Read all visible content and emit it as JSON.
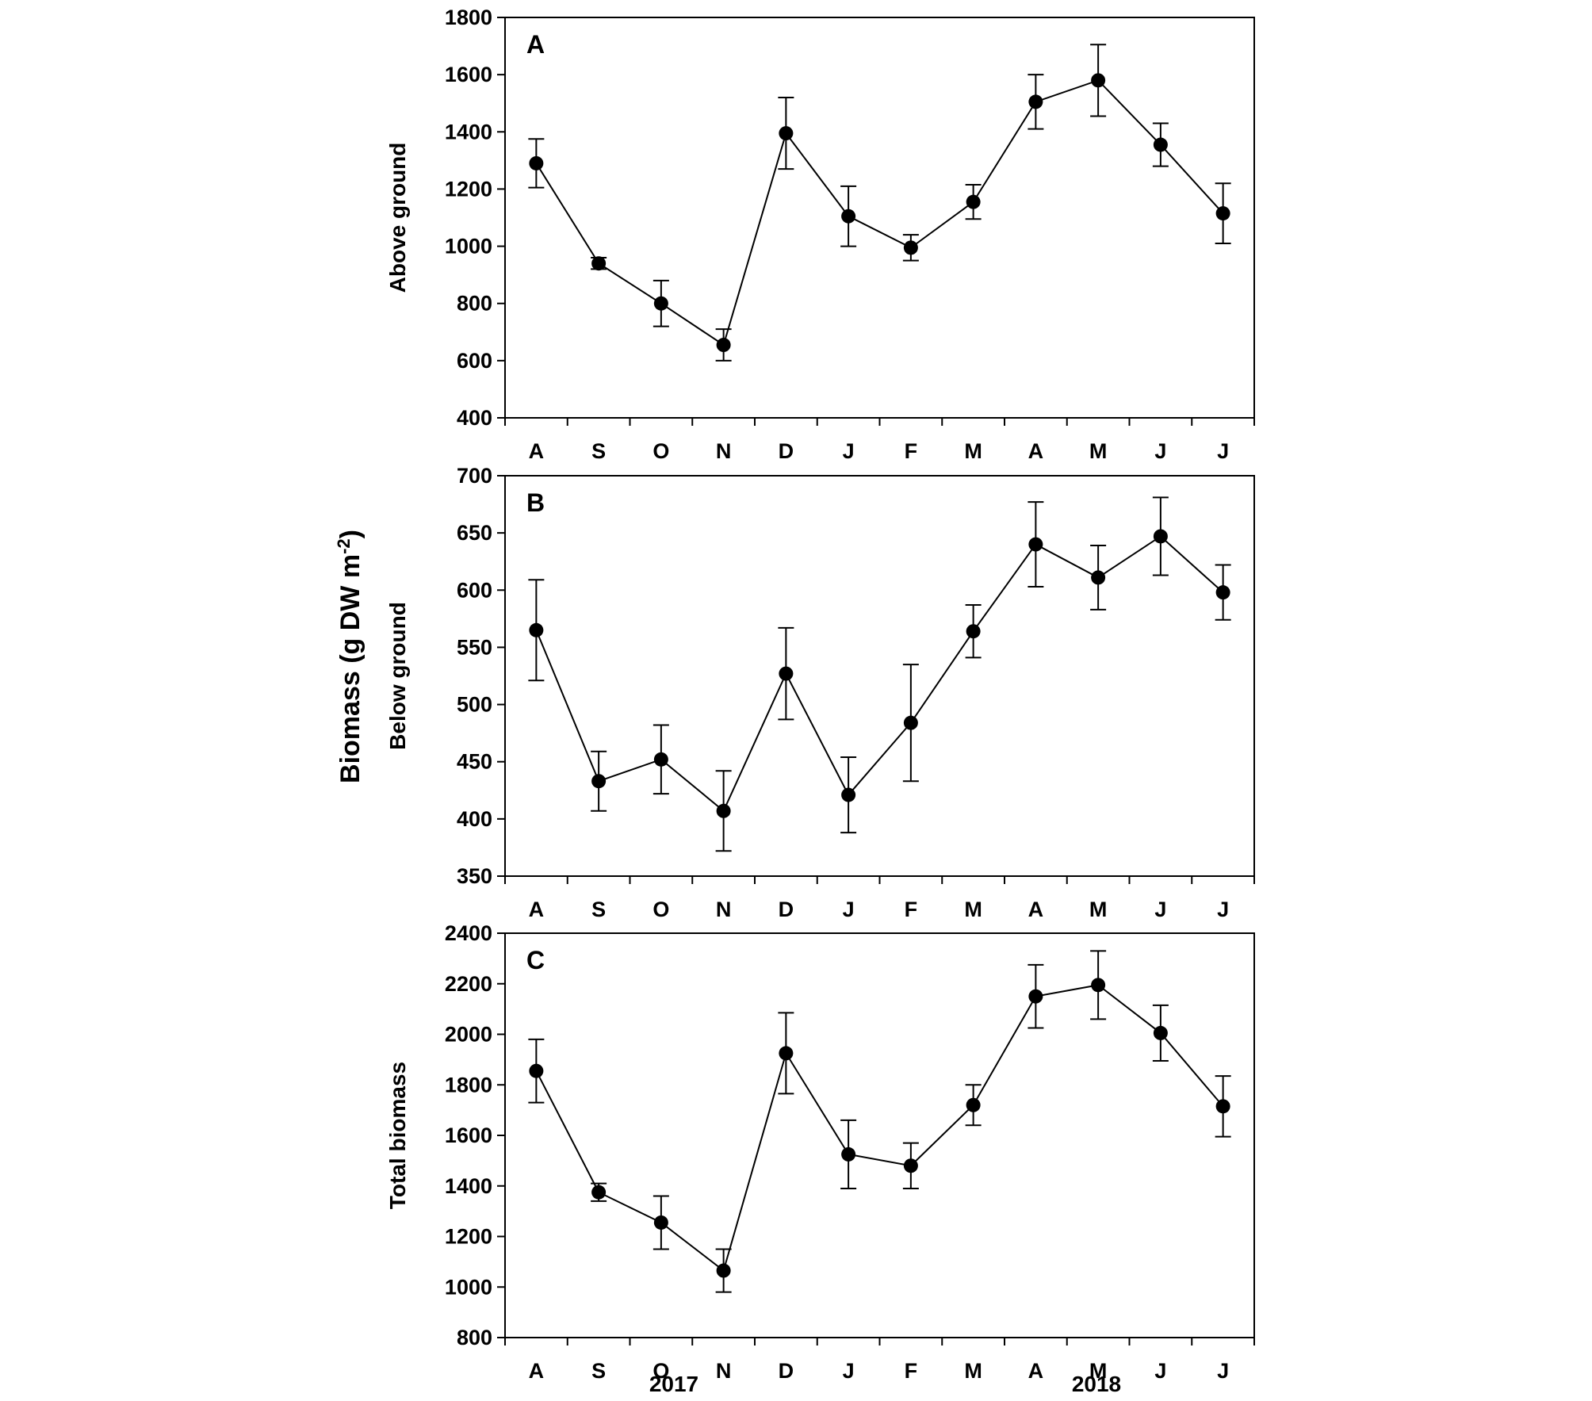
{
  "figure": {
    "shared_ylabel_main": "Biomass (g DW m",
    "shared_ylabel_sup": "-2",
    "shared_ylabel_close": ")",
    "years": [
      "2017",
      "2018"
    ]
  },
  "chart_data": [
    {
      "type": "line",
      "panel": "A",
      "ylabel": "Above ground",
      "categories": [
        "A",
        "S",
        "O",
        "N",
        "D",
        "J",
        "F",
        "M",
        "A",
        "M",
        "J",
        "J"
      ],
      "values": [
        1290,
        940,
        800,
        655,
        1395,
        1105,
        995,
        1155,
        1505,
        1580,
        1355,
        1115
      ],
      "errors": [
        85,
        20,
        80,
        55,
        125,
        105,
        45,
        60,
        95,
        125,
        75,
        105
      ],
      "ylim": [
        400,
        1800
      ],
      "yticks": [
        400,
        600,
        800,
        1000,
        1200,
        1400,
        1600,
        1800
      ],
      "grid": false
    },
    {
      "type": "line",
      "panel": "B",
      "ylabel": "Below ground",
      "categories": [
        "A",
        "S",
        "O",
        "N",
        "D",
        "J",
        "F",
        "M",
        "A",
        "M",
        "J",
        "J"
      ],
      "values": [
        565,
        433,
        452,
        407,
        527,
        421,
        484,
        564,
        640,
        611,
        647,
        598
      ],
      "errors": [
        44,
        26,
        30,
        35,
        40,
        33,
        51,
        23,
        37,
        28,
        34,
        24
      ],
      "ylim": [
        350,
        700
      ],
      "yticks": [
        350,
        400,
        450,
        500,
        550,
        600,
        650,
        700
      ],
      "grid": false
    },
    {
      "type": "line",
      "panel": "C",
      "ylabel": "Total biomass",
      "categories": [
        "A",
        "S",
        "O",
        "N",
        "D",
        "J",
        "F",
        "M",
        "A",
        "M",
        "J",
        "J"
      ],
      "values": [
        1855,
        1375,
        1255,
        1065,
        1925,
        1525,
        1480,
        1720,
        2150,
        2195,
        2005,
        1715
      ],
      "errors": [
        125,
        35,
        105,
        85,
        160,
        135,
        90,
        80,
        125,
        135,
        110,
        120
      ],
      "ylim": [
        800,
        2400
      ],
      "yticks": [
        800,
        1000,
        1200,
        1400,
        1600,
        1800,
        2000,
        2200,
        2400
      ],
      "grid": false
    }
  ]
}
